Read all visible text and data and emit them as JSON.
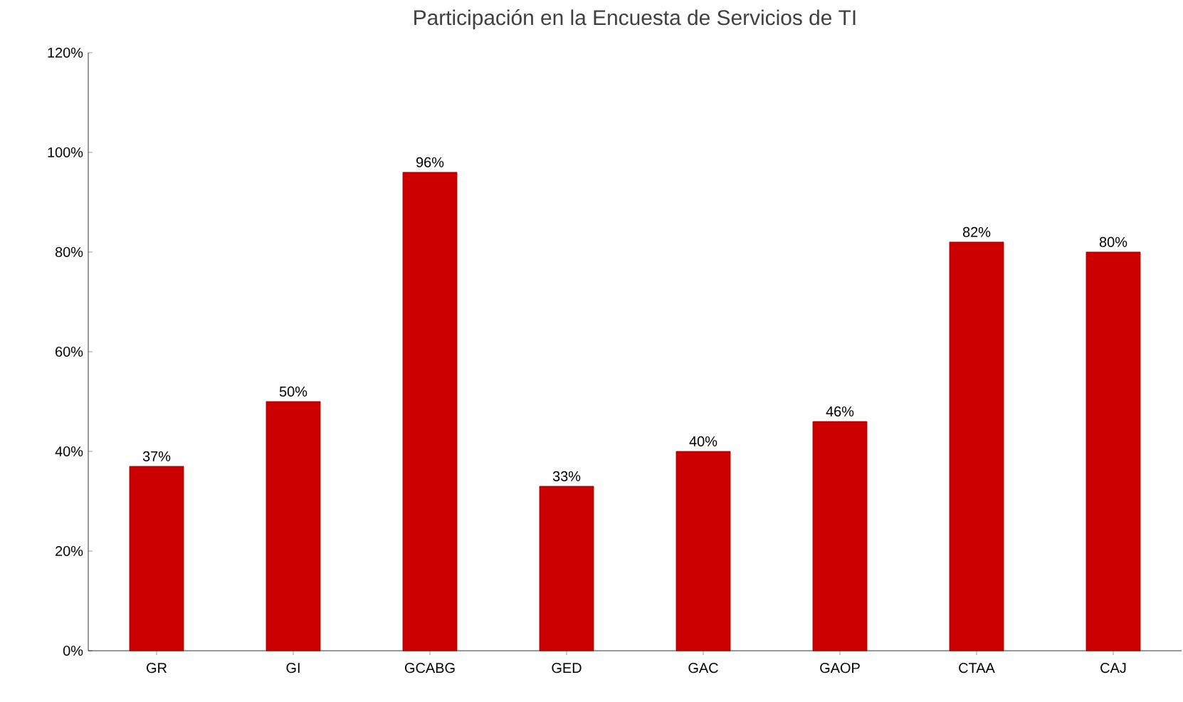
{
  "chart_data": {
    "type": "bar",
    "title": "Participación en la Encuesta de Servicios de TI",
    "categories": [
      "GR",
      "GI",
      "GCABG",
      "GED",
      "GAC",
      "GAOP",
      "CTAA",
      "CAJ"
    ],
    "values": [
      37,
      50,
      96,
      33,
      40,
      46,
      82,
      80
    ],
    "value_labels": [
      "37%",
      "50%",
      "96%",
      "33%",
      "40%",
      "46%",
      "82%",
      "80%"
    ],
    "color": "#cc0000",
    "ylim": [
      0,
      120
    ],
    "yticks": [
      {
        "value": 0,
        "label": "0%"
      },
      {
        "value": 20,
        "label": "20%"
      },
      {
        "value": 40,
        "label": "40%"
      },
      {
        "value": 60,
        "label": "60%"
      },
      {
        "value": 80,
        "label": "80%"
      },
      {
        "value": 100,
        "label": "100%"
      },
      {
        "value": 120,
        "label": "120%"
      }
    ],
    "grid": false
  }
}
